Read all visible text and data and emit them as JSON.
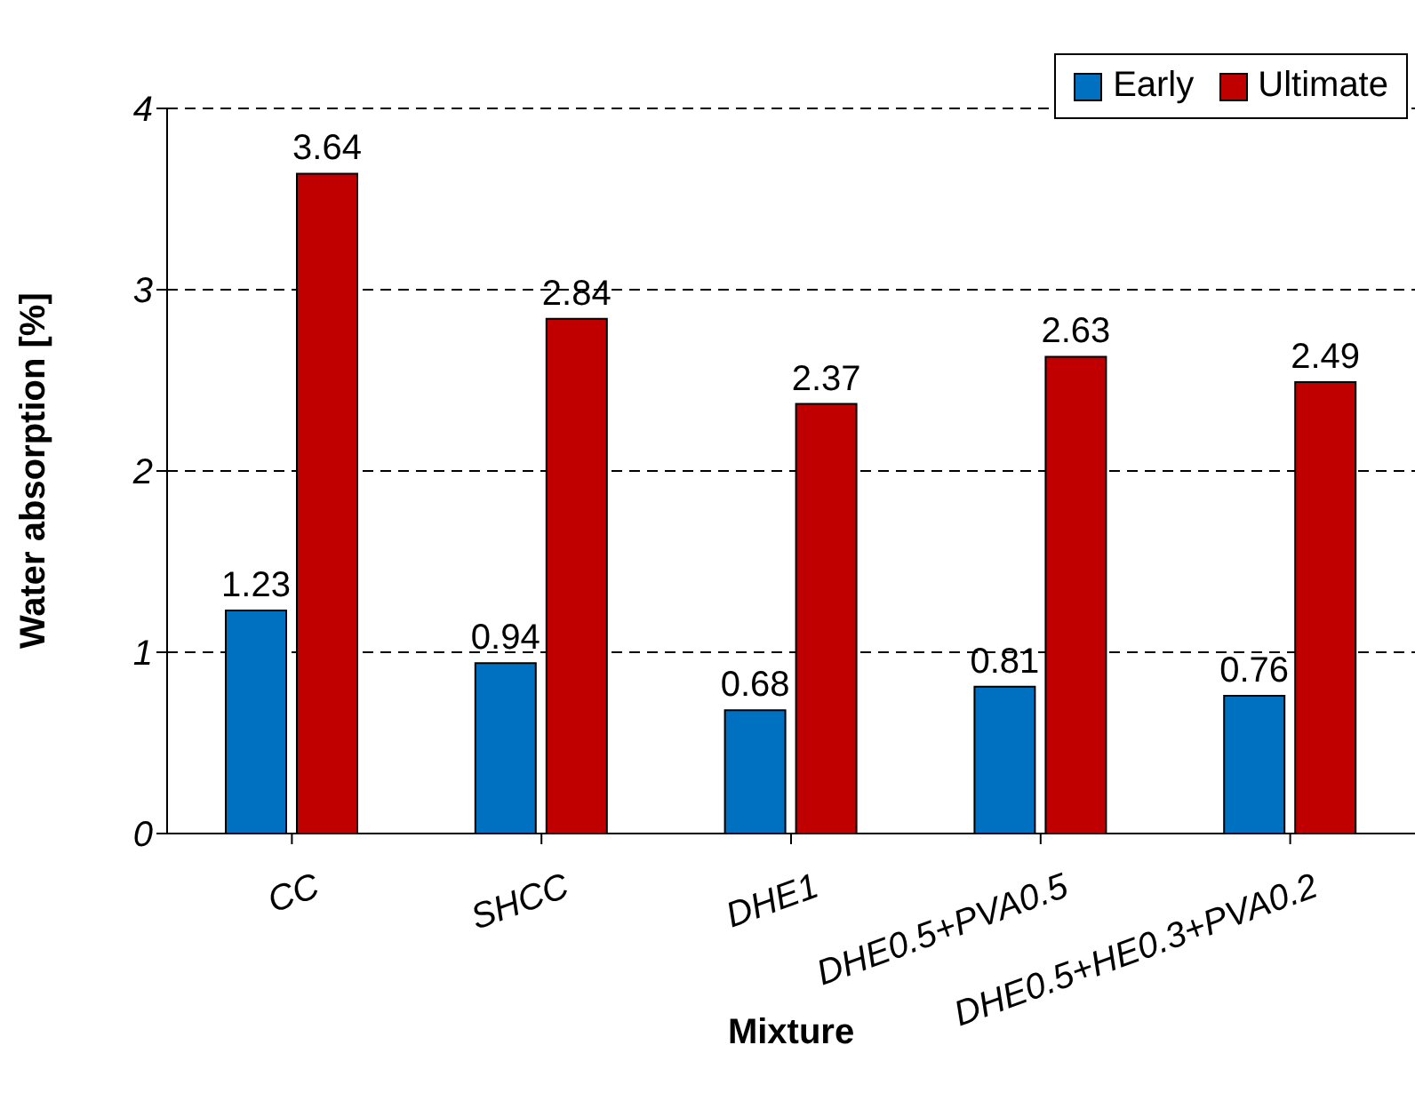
{
  "chart_data": {
    "type": "bar",
    "xlabel": "Mixture",
    "ylabel": "Water absorption [%]",
    "categories": [
      "CC",
      "SHCC",
      "DHE1",
      "DHE0.5+PVA0.5",
      "DHE0.5+HE0.3+PVA0.2"
    ],
    "series": [
      {
        "name": "Early",
        "color": "#0070c0",
        "values": [
          1.23,
          0.94,
          0.68,
          0.81,
          0.76
        ]
      },
      {
        "name": "Ultimate",
        "color": "#c00000",
        "values": [
          3.64,
          2.84,
          2.37,
          2.63,
          2.49
        ]
      }
    ],
    "ylim": [
      0,
      4
    ],
    "yticks": [
      0,
      1,
      2,
      3,
      4
    ],
    "grid": "y",
    "legend": "top right",
    "data_labels": true
  }
}
